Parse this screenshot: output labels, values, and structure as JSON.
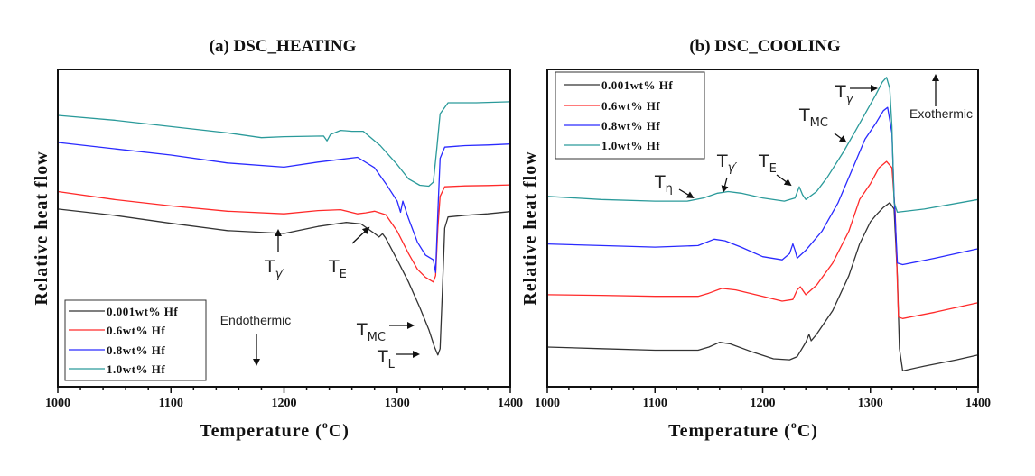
{
  "chart_data": [
    {
      "type": "line",
      "title": "(a) DSC_HEATING",
      "xlabel": "Temperature (°C)",
      "ylabel": "Relative heat flow",
      "xlim": [
        1000,
        1400
      ],
      "ylim": [
        0,
        100
      ],
      "x_ticks": [
        "1000",
        "1100",
        "1200",
        "1300",
        "1400"
      ],
      "y_ticks_shown": false,
      "legend": {
        "position": "bottom-left",
        "entries": [
          "0.001wt% Hf",
          "0.6wt% Hf",
          "0.8wt% Hf",
          "1.0wt% Hf"
        ]
      },
      "series": [
        {
          "name": "0.001wt% Hf",
          "color": "#333333",
          "points": [
            [
              1000,
              56
            ],
            [
              1050,
              54
            ],
            [
              1100,
              51.5
            ],
            [
              1150,
              49.2
            ],
            [
              1200,
              48.3
            ],
            [
              1230,
              50.5
            ],
            [
              1255,
              51.8
            ],
            [
              1268,
              51.3
            ],
            [
              1280,
              48.3
            ],
            [
              1284,
              47.2
            ],
            [
              1287,
              48.2
            ],
            [
              1290,
              46.8
            ],
            [
              1300,
              40
            ],
            [
              1310,
              33
            ],
            [
              1320,
              25
            ],
            [
              1328,
              18
            ],
            [
              1333,
              12.5
            ],
            [
              1336,
              10
            ],
            [
              1338,
              12
            ],
            [
              1340,
              30
            ],
            [
              1342,
              50
            ],
            [
              1345,
              53.5
            ],
            [
              1360,
              54
            ],
            [
              1380,
              54.5
            ],
            [
              1400,
              55.2
            ]
          ]
        },
        {
          "name": "0.6wt% Hf",
          "color": "#ff2a2a",
          "points": [
            [
              1000,
              61.5
            ],
            [
              1050,
              59
            ],
            [
              1100,
              57
            ],
            [
              1150,
              55.3
            ],
            [
              1200,
              54.5
            ],
            [
              1230,
              55.5
            ],
            [
              1250,
              55.8
            ],
            [
              1265,
              54.5
            ],
            [
              1272,
              54.8
            ],
            [
              1280,
              55.3
            ],
            [
              1290,
              54.2
            ],
            [
              1300,
              49
            ],
            [
              1310,
              42
            ],
            [
              1318,
              37
            ],
            [
              1325,
              34.5
            ],
            [
              1332,
              33
            ],
            [
              1334,
              35
            ],
            [
              1336,
              50
            ],
            [
              1338,
              60
            ],
            [
              1342,
              63
            ],
            [
              1360,
              63.3
            ],
            [
              1380,
              63.4
            ],
            [
              1400,
              63.6
            ]
          ]
        },
        {
          "name": "0.8wt% Hf",
          "color": "#2a2aff",
          "points": [
            [
              1000,
              77
            ],
            [
              1050,
              75
            ],
            [
              1100,
              73
            ],
            [
              1150,
              70.5
            ],
            [
              1200,
              69.2
            ],
            [
              1230,
              70.8
            ],
            [
              1265,
              72.3
            ],
            [
              1280,
              69
            ],
            [
              1290,
              64
            ],
            [
              1300,
              58.5
            ],
            [
              1303,
              55
            ],
            [
              1305,
              58.5
            ],
            [
              1310,
              53
            ],
            [
              1318,
              45.5
            ],
            [
              1325,
              41.5
            ],
            [
              1332,
              40
            ],
            [
              1334,
              36
            ],
            [
              1336,
              55
            ],
            [
              1338,
              72
            ],
            [
              1342,
              75.5
            ],
            [
              1360,
              76
            ],
            [
              1380,
              76.2
            ],
            [
              1400,
              76.5
            ]
          ]
        },
        {
          "name": "1.0wt% Hf",
          "color": "#2a9a9a",
          "points": [
            [
              1000,
              85.5
            ],
            [
              1050,
              84
            ],
            [
              1100,
              82
            ],
            [
              1150,
              80
            ],
            [
              1180,
              78.5
            ],
            [
              1200,
              78.8
            ],
            [
              1235,
              79
            ],
            [
              1238,
              77.5
            ],
            [
              1241,
              79.5
            ],
            [
              1250,
              80.8
            ],
            [
              1260,
              80.5
            ],
            [
              1270,
              80.5
            ],
            [
              1285,
              76
            ],
            [
              1300,
              70
            ],
            [
              1310,
              65.5
            ],
            [
              1320,
              63.5
            ],
            [
              1328,
              63.2
            ],
            [
              1332,
              64.5
            ],
            [
              1335,
              75
            ],
            [
              1338,
              86
            ],
            [
              1345,
              89.5
            ],
            [
              1370,
              89.5
            ],
            [
              1400,
              89.8
            ]
          ]
        }
      ],
      "annotations": [
        {
          "label": "T",
          "subscript": "γ'",
          "x": 1200,
          "arrow": "up"
        },
        {
          "label": "T",
          "subscript": "E",
          "x": 1285,
          "arrow": "up-right"
        },
        {
          "label": "T",
          "subscript": "MC",
          "x": 1332,
          "arrow": "right"
        },
        {
          "label": "T",
          "subscript": "L",
          "x": 1337,
          "arrow": "right"
        },
        {
          "label": "Endothermic",
          "arrow": "down"
        }
      ]
    },
    {
      "type": "line",
      "title": "(b) DSC_COOLING",
      "xlabel": "Temperature (°C)",
      "ylabel": "Relative heat flow",
      "xlim": [
        1000,
        1400
      ],
      "ylim": [
        0,
        100
      ],
      "x_ticks": [
        "1000",
        "1100",
        "1200",
        "1300",
        "1400"
      ],
      "y_ticks_shown": false,
      "legend": {
        "position": "top-left",
        "entries": [
          "0.001wt% Hf",
          "0.6wt% Hf",
          "0.8wt% Hf",
          "1.0wt% Hf"
        ]
      },
      "series": [
        {
          "name": "0.001wt% Hf",
          "color": "#333333",
          "points": [
            [
              1000,
              12.5
            ],
            [
              1050,
              12
            ],
            [
              1100,
              11.5
            ],
            [
              1140,
              11.5
            ],
            [
              1150,
              12.5
            ],
            [
              1160,
              14
            ],
            [
              1170,
              13.5
            ],
            [
              1190,
              11
            ],
            [
              1210,
              8.8
            ],
            [
              1225,
              8.5
            ],
            [
              1232,
              9.5
            ],
            [
              1240,
              14
            ],
            [
              1243,
              16.5
            ],
            [
              1245,
              14.5
            ],
            [
              1250,
              16.5
            ],
            [
              1265,
              24
            ],
            [
              1280,
              35
            ],
            [
              1290,
              45
            ],
            [
              1300,
              52
            ],
            [
              1305,
              54
            ],
            [
              1312,
              56.5
            ],
            [
              1318,
              58
            ],
            [
              1322,
              56
            ],
            [
              1325,
              35
            ],
            [
              1327,
              12
            ],
            [
              1330,
              5
            ],
            [
              1350,
              6.5
            ],
            [
              1380,
              8.5
            ],
            [
              1400,
              10
            ]
          ]
        },
        {
          "name": "0.6wt% Hf",
          "color": "#ff2a2a",
          "points": [
            [
              1000,
              29
            ],
            [
              1050,
              28.8
            ],
            [
              1100,
              28.5
            ],
            [
              1140,
              28.5
            ],
            [
              1150,
              29.5
            ],
            [
              1162,
              31
            ],
            [
              1175,
              30.5
            ],
            [
              1200,
              28.5
            ],
            [
              1218,
              27
            ],
            [
              1228,
              27.5
            ],
            [
              1232,
              30.5
            ],
            [
              1235,
              31.5
            ],
            [
              1240,
              29
            ],
            [
              1250,
              32
            ],
            [
              1265,
              39
            ],
            [
              1280,
              49
            ],
            [
              1290,
              59
            ],
            [
              1300,
              64
            ],
            [
              1308,
              69
            ],
            [
              1315,
              71
            ],
            [
              1320,
              69
            ],
            [
              1323,
              55
            ],
            [
              1326,
              22
            ],
            [
              1330,
              21.5
            ],
            [
              1360,
              23.5
            ],
            [
              1400,
              26.5
            ]
          ]
        },
        {
          "name": "0.8wt% Hf",
          "color": "#2a2aff",
          "points": [
            [
              1000,
              45
            ],
            [
              1050,
              44.5
            ],
            [
              1100,
              44
            ],
            [
              1140,
              44.5
            ],
            [
              1155,
              46.5
            ],
            [
              1165,
              46
            ],
            [
              1180,
              44
            ],
            [
              1200,
              41
            ],
            [
              1218,
              40
            ],
            [
              1225,
              42
            ],
            [
              1228,
              45
            ],
            [
              1230,
              43
            ],
            [
              1232,
              40.5
            ],
            [
              1240,
              43
            ],
            [
              1255,
              49
            ],
            [
              1270,
              58
            ],
            [
              1285,
              70
            ],
            [
              1295,
              78
            ],
            [
              1305,
              83
            ],
            [
              1312,
              87
            ],
            [
              1316,
              88
            ],
            [
              1320,
              80
            ],
            [
              1322,
              60
            ],
            [
              1325,
              39
            ],
            [
              1330,
              38.5
            ],
            [
              1360,
              40.5
            ],
            [
              1400,
              43.5
            ]
          ]
        },
        {
          "name": "1.0wt% Hf",
          "color": "#2a9a9a",
          "points": [
            [
              1000,
              60
            ],
            [
              1050,
              59
            ],
            [
              1100,
              58.5
            ],
            [
              1130,
              58.5
            ],
            [
              1145,
              59.5
            ],
            [
              1158,
              61
            ],
            [
              1168,
              61.5
            ],
            [
              1180,
              61
            ],
            [
              1200,
              59.5
            ],
            [
              1220,
              58.5
            ],
            [
              1230,
              59.5
            ],
            [
              1234,
              63
            ],
            [
              1237,
              60.5
            ],
            [
              1240,
              59
            ],
            [
              1250,
              61.5
            ],
            [
              1260,
              66
            ],
            [
              1275,
              74
            ],
            [
              1285,
              80
            ],
            [
              1295,
              86
            ],
            [
              1305,
              92
            ],
            [
              1311,
              96
            ],
            [
              1315,
              97.5
            ],
            [
              1318,
              94
            ],
            [
              1320,
              82
            ],
            [
              1322,
              58
            ],
            [
              1325,
              55
            ],
            [
              1350,
              56
            ],
            [
              1400,
              59
            ]
          ]
        }
      ],
      "annotations": [
        {
          "label": "T",
          "subscript": "η",
          "x": 1140,
          "arrow": "down-right"
        },
        {
          "label": "T",
          "subscript": "γ'",
          "x": 1160,
          "arrow": "down"
        },
        {
          "label": "T",
          "subscript": "E",
          "x": 1232,
          "arrow": "down-right"
        },
        {
          "label": "T",
          "subscript": "MC",
          "x": 1280,
          "arrow": "down-right"
        },
        {
          "label": "T",
          "subscript": "γ",
          "x": 1315,
          "arrow": "right"
        },
        {
          "label": "Exothermic",
          "arrow": "up"
        }
      ]
    }
  ],
  "panels": {
    "a": {
      "title": "(a) DSC_HEATING",
      "xlabel": "Temperature (",
      "xlabel_unit": "C)",
      "degree": "o",
      "ylabel": "Relative heat flow",
      "endothermic": "Endothermic",
      "ann_T": "T",
      "ann_gamma_prime": "γ′",
      "ann_E": "E",
      "ann_MC": "MC",
      "ann_L": "L"
    },
    "b": {
      "title": "(b) DSC_COOLING",
      "xlabel": "Temperature (",
      "xlabel_unit": "C)",
      "degree": "o",
      "ylabel": "Relative heat flow",
      "exothermic": "Exothermic",
      "ann_T": "T",
      "ann_eta": "η",
      "ann_gamma_prime": "γ′",
      "ann_E": "E",
      "ann_MC": "MC",
      "ann_gamma": "γ"
    },
    "ticks": [
      "1000",
      "1100",
      "1200",
      "1300",
      "1400"
    ],
    "legend": [
      "0.001wt% Hf",
      "0.6wt% Hf",
      "0.8wt% Hf",
      "1.0wt% Hf"
    ],
    "colors": [
      "#333333",
      "#ff2a2a",
      "#2a2aff",
      "#2a9a9a"
    ]
  }
}
